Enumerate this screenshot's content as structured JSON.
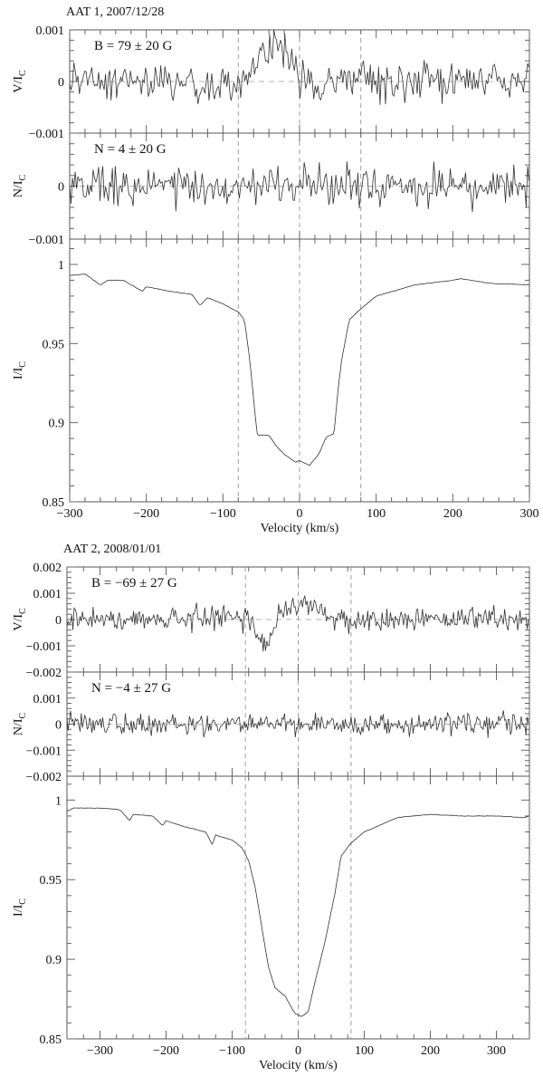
{
  "chart_data": [
    {
      "type": "line",
      "title": "AAT 1, 2007/12/28",
      "xlabel": "Velocity (km/s)",
      "xlim": [
        -300,
        300
      ],
      "xticks": [
        -300,
        -200,
        -100,
        0,
        100,
        200,
        300
      ],
      "xtick_labels": [
        "−300",
        "−200",
        "−100",
        "0",
        "100",
        "200",
        "300"
      ],
      "reference_lines_velocity": [
        -80,
        0,
        80
      ],
      "panels": [
        {
          "name": "stokes-v",
          "ylabel": "V/I",
          "ylabel_sub": "C",
          "ylim": [
            -0.001,
            0.001
          ],
          "yticks": [
            0.001,
            0,
            -0.001
          ],
          "ytick_labels": [
            "0.001",
            "0",
            "−0.001"
          ],
          "annotation": "B = 79 ± 20 G",
          "zero_line": true,
          "signal": {
            "x": [
              -300,
              -100,
              -70,
              -50,
              -30,
              -15,
              0,
              20,
              40,
              300
            ],
            "y": [
              0,
              0,
              0.0001,
              0.0004,
              0.0007,
              0.0005,
              0.0001,
              -0.0001,
              0,
              0
            ]
          },
          "noise_sigma": 0.00025
        },
        {
          "name": "null-n",
          "ylabel": "N/I",
          "ylabel_sub": "C",
          "ylim": [
            -0.001,
            0.001
          ],
          "yticks": [
            0,
            -0.001
          ],
          "ytick_labels": [
            "0",
            "−0.001"
          ],
          "annotation": "N = 4 ± 20 G",
          "zero_line": true,
          "signal": {
            "x": [
              -300,
              300
            ],
            "y": [
              0,
              0
            ]
          },
          "noise_sigma": 0.00025
        },
        {
          "name": "stokes-i",
          "ylabel": "I/I",
          "ylabel_sub": "C",
          "ylim": [
            0.85,
            1.016
          ],
          "yticks": [
            1,
            0.95,
            0.9,
            0.85
          ],
          "ytick_labels": [
            "1",
            "0.95",
            "0.9",
            "0.85"
          ],
          "annotation": "",
          "zero_line": false,
          "signal": {
            "x": [
              -300,
              -280,
              -260,
              -250,
              -230,
              -205,
              -200,
              -170,
              -140,
              -130,
              -120,
              -100,
              -80,
              -72,
              -65,
              -58,
              -55,
              -40,
              -30,
              -20,
              -5,
              0,
              13,
              25,
              35,
              45,
              50,
              55,
              65,
              80,
              100,
              150,
              200,
              210,
              250,
              300
            ],
            "y": [
              0.993,
              0.994,
              0.987,
              0.99,
              0.99,
              0.983,
              0.986,
              0.983,
              0.981,
              0.974,
              0.979,
              0.975,
              0.97,
              0.965,
              0.94,
              0.905,
              0.892,
              0.892,
              0.885,
              0.88,
              0.875,
              0.876,
              0.873,
              0.88,
              0.891,
              0.893,
              0.92,
              0.94,
              0.965,
              0.972,
              0.98,
              0.987,
              0.99,
              0.991,
              0.988,
              0.987
            ]
          },
          "noise_sigma": 0.0004
        }
      ]
    },
    {
      "type": "line",
      "title": "AAT 2, 2008/01/01",
      "xlabel": "Velocity (km/s)",
      "xlim": [
        -350,
        350
      ],
      "xticks": [
        -300,
        -200,
        -100,
        0,
        100,
        200,
        300
      ],
      "xtick_labels": [
        "−300",
        "−200",
        "−100",
        "0",
        "100",
        "200",
        "300"
      ],
      "reference_lines_velocity": [
        -80,
        0,
        80
      ],
      "panels": [
        {
          "name": "stokes-v",
          "ylabel": "V/I",
          "ylabel_sub": "C",
          "ylim": [
            -0.002,
            0.002
          ],
          "yticks": [
            0.002,
            0.001,
            0,
            -0.001,
            -0.002
          ],
          "ytick_labels": [
            "0.002",
            "0.001",
            "0",
            "−0.001",
            "−0.002"
          ],
          "annotation": "B = −69 ± 27 G",
          "zero_line": true,
          "signal": {
            "x": [
              -350,
              -80,
              -68,
              -55,
              -45,
              -35,
              -25,
              -10,
              10,
              30,
              50,
              350
            ],
            "y": [
              0,
              0,
              -0.0003,
              -0.0009,
              -0.0009,
              -0.0002,
              0.0003,
              0.0004,
              0.0006,
              0.0005,
              0,
              0
            ]
          },
          "noise_sigma": 0.0003
        },
        {
          "name": "null-n",
          "ylabel": "N/I",
          "ylabel_sub": "C",
          "ylim": [
            -0.002,
            0.002
          ],
          "yticks": [
            0.001,
            0,
            -0.001,
            -0.002
          ],
          "ytick_labels": [
            "0.001",
            "0",
            "−0.001",
            "−0.002"
          ],
          "annotation": "N = −4 ± 27 G",
          "zero_line": true,
          "signal": {
            "x": [
              -350,
              350
            ],
            "y": [
              0,
              0
            ]
          },
          "noise_sigma": 0.0003
        },
        {
          "name": "stokes-i",
          "ylabel": "I/I",
          "ylabel_sub": "C",
          "ylim": [
            0.85,
            1.015
          ],
          "yticks": [
            1,
            0.95,
            0.9,
            0.85
          ],
          "ytick_labels": [
            "1",
            "0.95",
            "0.9",
            "0.85"
          ],
          "annotation": "",
          "zero_line": false,
          "signal": {
            "x": [
              -350,
              -340,
              -300,
              -270,
              -255,
              -250,
              -220,
              -205,
              -200,
              -170,
              -140,
              -130,
              -125,
              -100,
              -85,
              -75,
              -65,
              -55,
              -45,
              -35,
              -20,
              -5,
              5,
              15,
              25,
              40,
              55,
              65,
              80,
              100,
              150,
              200,
              250,
              300,
              340,
              350
            ],
            "y": [
              0.993,
              0.995,
              0.995,
              0.994,
              0.987,
              0.991,
              0.99,
              0.984,
              0.987,
              0.983,
              0.98,
              0.972,
              0.978,
              0.975,
              0.97,
              0.962,
              0.945,
              0.92,
              0.895,
              0.882,
              0.877,
              0.866,
              0.864,
              0.867,
              0.885,
              0.91,
              0.94,
              0.965,
              0.973,
              0.98,
              0.989,
              0.991,
              0.99,
              0.99,
              0.989,
              0.99
            ]
          },
          "noise_sigma": 0.0004
        }
      ]
    }
  ]
}
